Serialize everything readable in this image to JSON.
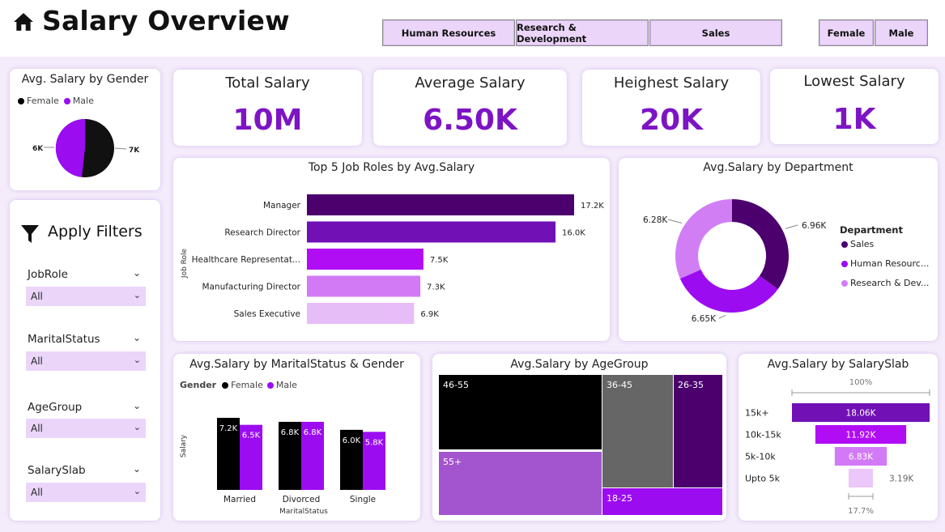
{
  "header": {
    "title": "Salary Overview",
    "dept_buttons": [
      "Human Resources",
      "Research & Development",
      "Sales"
    ],
    "gender_buttons": [
      "Female",
      "Male"
    ]
  },
  "colors": {
    "accent": "#7d14c4",
    "female": "#000000",
    "male": "#9b0cf0",
    "dark_purple": "#4b006e",
    "light_purple": "#e6bdf7"
  },
  "gender_card": {
    "title": "Avg. Salary by Gender",
    "legend": [
      "Female",
      "Male"
    ],
    "labels": [
      "6K",
      "7K"
    ]
  },
  "kpis": [
    {
      "label": "Total Salary",
      "value": "10M"
    },
    {
      "label": "Average Salary",
      "value": "6.50K"
    },
    {
      "label": "Heighest Salary",
      "value": "20K"
    },
    {
      "label": "Lowest Salary",
      "value": "1K"
    }
  ],
  "filters": {
    "title": "Apply Filters",
    "items": [
      {
        "label": "JobRole",
        "value": "All"
      },
      {
        "label": "MaritalStatus",
        "value": "All"
      },
      {
        "label": "AgeGroup",
        "value": "All"
      },
      {
        "label": "SalarySlab",
        "value": "All"
      }
    ]
  },
  "job_roles_card": {
    "title": "Top 5 Job Roles by Avg.Salary",
    "axis_label": "Job Role"
  },
  "department_card": {
    "title": "Avg.Salary by Department",
    "legend_title": "Department",
    "legend": [
      "Sales",
      "Human Resourc...",
      "Research & Dev..."
    ]
  },
  "marital_card": {
    "title": "Avg.Salary by MaritalStatus & Gender",
    "legend_title": "Gender",
    "legend": [
      "Female",
      "Male"
    ],
    "ylabel": "Salary",
    "xlabel": "MaritalStatus"
  },
  "age_card": {
    "title": "Avg.Salary by AgeGroup"
  },
  "slab_card": {
    "title": "Avg.Salary by SalarySlab",
    "top_pct": "100%",
    "bottom_pct": "17.7%"
  },
  "chart_data": [
    {
      "type": "pie",
      "title": "Avg. Salary by Gender",
      "categories": [
        "Female",
        "Male"
      ],
      "values": [
        7,
        6
      ],
      "labels": [
        "7K",
        "6K"
      ]
    },
    {
      "type": "bar",
      "orientation": "horizontal",
      "title": "Top 5 Job Roles by Avg.Salary",
      "ylabel": "Job Role",
      "categories": [
        "Manager",
        "Research Director",
        "Healthcare Representat...",
        "Manufacturing Director",
        "Sales Executive"
      ],
      "values": [
        17.2,
        16.0,
        7.5,
        7.3,
        6.9
      ],
      "labels": [
        "17.2K",
        "16.0K",
        "7.5K",
        "7.3K",
        "6.9K"
      ],
      "colors": [
        "#4b006e",
        "#7010b5",
        "#b00df4",
        "#d27af5",
        "#e6bdf7"
      ]
    },
    {
      "type": "pie",
      "subtype": "donut",
      "title": "Avg.Salary by Department",
      "categories": [
        "Sales",
        "Human Resources",
        "Research & Development"
      ],
      "values": [
        6.96,
        6.65,
        6.28
      ],
      "labels": [
        "6.96K",
        "6.65K",
        "6.28K"
      ],
      "colors": [
        "#4b006e",
        "#9b0cf0",
        "#d17ef5"
      ]
    },
    {
      "type": "bar",
      "title": "Avg.Salary by MaritalStatus & Gender",
      "xlabel": "MaritalStatus",
      "ylabel": "Salary",
      "categories": [
        "Married",
        "Divorced",
        "Single"
      ],
      "series": [
        {
          "name": "Female",
          "values": [
            7.2,
            6.8,
            6.0
          ],
          "labels": [
            "7.2K",
            "6.8K",
            "6.0K"
          ],
          "color": "#000000"
        },
        {
          "name": "Male",
          "values": [
            6.5,
            6.8,
            5.8
          ],
          "labels": [
            "6.5K",
            "6.8K",
            "5.8K"
          ],
          "color": "#9b0cf0"
        }
      ]
    },
    {
      "type": "heatmap",
      "subtype": "treemap",
      "title": "Avg.Salary by AgeGroup",
      "categories": [
        "46-55",
        "55+",
        "36-45",
        "26-35",
        "18-25"
      ],
      "colors": [
        "#000000",
        "#a355cf",
        "#666666",
        "#4b006e",
        "#9b0cf0"
      ]
    },
    {
      "type": "bar",
      "subtype": "funnel",
      "title": "Avg.Salary by SalarySlab",
      "categories": [
        "15k+",
        "10k-15k",
        "5k-10k",
        "Upto 5k"
      ],
      "values": [
        18.06,
        11.92,
        6.83,
        3.19
      ],
      "labels": [
        "18.06K",
        "11.92K",
        "6.83K",
        "3.19K"
      ],
      "colors": [
        "#7010b5",
        "#b00df4",
        "#d27af5",
        "#ecc8fa"
      ]
    }
  ]
}
